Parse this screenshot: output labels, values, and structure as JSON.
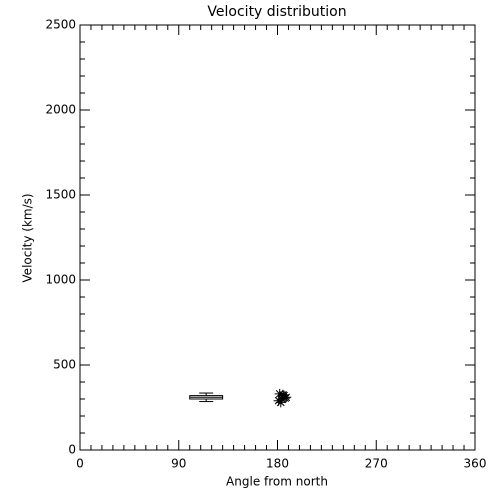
{
  "chart_data": {
    "type": "scatter",
    "title": "Velocity distribution",
    "xlabel": "Angle from north",
    "ylabel": "Velocity (km/s)",
    "xlim": [
      0,
      360
    ],
    "xticks": [
      0,
      90,
      180,
      270,
      360
    ],
    "xminor": 9,
    "ylim": [
      0,
      2500
    ],
    "yticks": [
      0,
      500,
      1000,
      1500,
      2000,
      2500
    ],
    "yminor": 5,
    "color": "#000000",
    "series": [
      {
        "x": [
          182,
          184,
          186,
          188,
          183,
          185,
          187,
          181
        ],
        "values": [
          330,
          300,
          320,
          310,
          280,
          325,
          305,
          290
        ]
      }
    ],
    "box": {
      "x": 115,
      "width": 30,
      "min": 285,
      "q1": 300,
      "median": 310,
      "q3": 320,
      "max": 335
    }
  }
}
